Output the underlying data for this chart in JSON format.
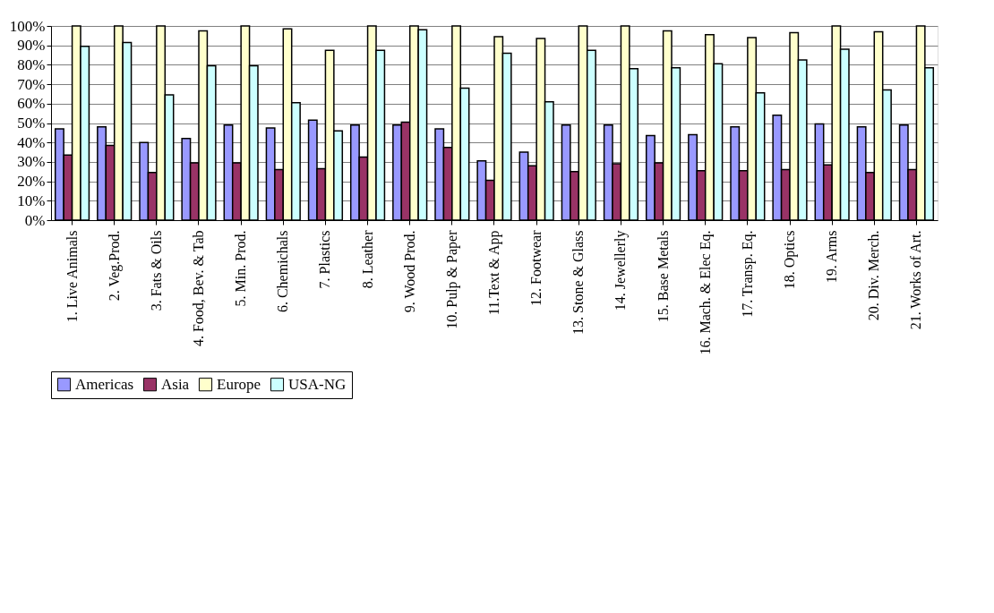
{
  "chart_data": {
    "type": "bar",
    "categories": [
      "1. Live Animals",
      "2. Veg.Prod.",
      "3. Fats & Oils",
      "4. Food, Bev. & Tab",
      "5. Min. Prod.",
      "6. Chemichals",
      "7. Plastics",
      "8. Leather",
      "9. Wood Prod.",
      "10. Pulp & Paper",
      "11.Text & App",
      "12. Footwear",
      "13. Stone & Glass",
      "14. Jewellerly",
      "15. Base Metals",
      "16. Mach. & Elec Eq.",
      "17. Transp. Eq.",
      "18. Optics",
      "19. Arms",
      "20. Div. Merch.",
      "21. Works of Art."
    ],
    "series": [
      {
        "name": "Americas",
        "color": "#9999ff",
        "values": [
          47,
          48,
          40,
          42,
          49,
          47.5,
          51.5,
          49,
          49,
          47,
          30.5,
          35,
          49,
          49,
          43.5,
          44,
          48,
          54,
          49.5,
          48,
          49
        ]
      },
      {
        "name": "Asia",
        "color": "#993366",
        "values": [
          33.5,
          38.5,
          24.5,
          29.5,
          29.5,
          26,
          26.5,
          32.5,
          50.5,
          37.5,
          20.5,
          28,
          25,
          29,
          29.5,
          25.5,
          25.5,
          26,
          28.5,
          24.5,
          26
        ]
      },
      {
        "name": "Europe",
        "color": "#ffffcc",
        "values": [
          100,
          100,
          100,
          97.5,
          100,
          98.5,
          87.5,
          100,
          100,
          100,
          94.5,
          93.5,
          100,
          100,
          97.5,
          95.5,
          94,
          96.5,
          100,
          97,
          100
        ]
      },
      {
        "name": "USA-NG",
        "color": "#ccffff",
        "values": [
          89.5,
          91.5,
          64.5,
          79.5,
          79.5,
          60.5,
          46,
          87.5,
          98,
          68,
          86,
          61,
          87.5,
          78,
          78.5,
          80.5,
          65.5,
          82.5,
          88,
          67,
          78.5
        ]
      }
    ],
    "ylim": [
      0,
      100
    ],
    "yticks": [
      {
        "value": 0,
        "label": "0%"
      },
      {
        "value": 10,
        "label": "10%"
      },
      {
        "value": 20,
        "label": "20%"
      },
      {
        "value": 30,
        "label": "30%"
      },
      {
        "value": 40,
        "label": "40%"
      },
      {
        "value": 50,
        "label": "50%"
      },
      {
        "value": 60,
        "label": "60%"
      },
      {
        "value": 70,
        "label": "70%"
      },
      {
        "value": 80,
        "label": "80%"
      },
      {
        "value": 90,
        "label": "90%"
      },
      {
        "value": 100,
        "label": "100%"
      }
    ],
    "grid": "y",
    "legend": "bottom"
  }
}
